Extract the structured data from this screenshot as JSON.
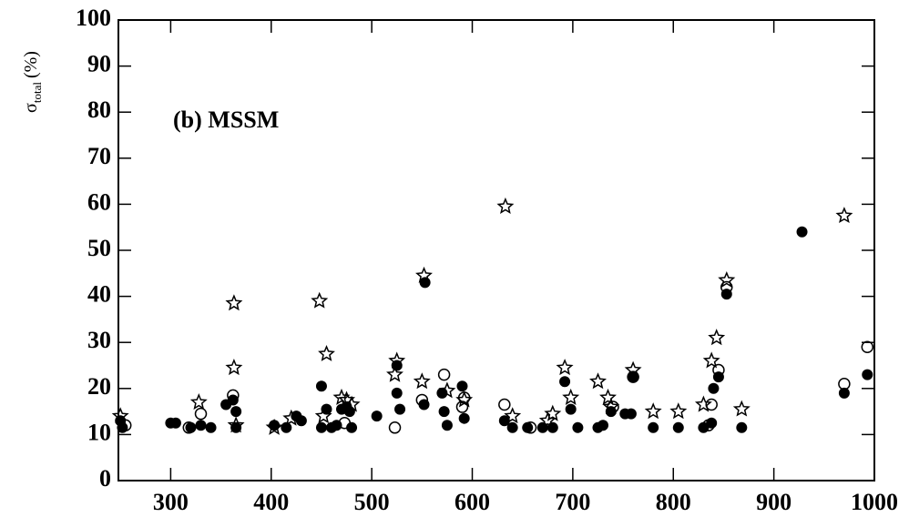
{
  "chart_data": {
    "type": "scatter",
    "annotation": "(b) MSSM",
    "ylabel": "σ",
    "ylabel_sub": "total",
    "ylabel_unit": "(%)",
    "xlim": [
      248,
      1000
    ],
    "ylim": [
      0,
      100
    ],
    "xticks": [
      300,
      400,
      500,
      600,
      700,
      800,
      900,
      1000
    ],
    "yticks": [
      0,
      10,
      20,
      30,
      40,
      50,
      60,
      70,
      80,
      90,
      100
    ],
    "series": [
      {
        "marker": "filled",
        "color": "#000000",
        "x": [
          250,
          252,
          300,
          305,
          320,
          330,
          340,
          355,
          362,
          365,
          365,
          403,
          415,
          425,
          430,
          450,
          450,
          455,
          460,
          465,
          470,
          475,
          478,
          480,
          505,
          525,
          525,
          528,
          552,
          553,
          570,
          572,
          575,
          590,
          592,
          632,
          640,
          655,
          670,
          680,
          692,
          698,
          705,
          725,
          730,
          738,
          752,
          758,
          760,
          780,
          805,
          830,
          838,
          840,
          845,
          853,
          868,
          928,
          970,
          993
        ],
        "values": [
          13,
          11.5,
          12.5,
          12.5,
          11.5,
          12,
          11.5,
          16.5,
          17.5,
          15,
          11.5,
          12,
          11.5,
          14,
          13,
          20.5,
          11.5,
          15.5,
          11.5,
          12,
          15.5,
          16,
          15,
          11.5,
          14,
          25,
          19,
          15.5,
          16.5,
          43,
          19,
          15,
          12,
          20.5,
          13.5,
          13,
          11.5,
          11.5,
          11.5,
          11.5,
          21.5,
          15.5,
          11.5,
          11.5,
          12,
          15,
          14.5,
          14.5,
          22.5,
          11.5,
          11.5,
          11.5,
          12.5,
          20,
          22.5,
          40.5,
          11.5,
          54,
          19,
          23
        ]
      },
      {
        "marker": "open",
        "color": "#000000",
        "x": [
          255,
          318,
          330,
          362,
          473,
          523,
          550,
          572,
          590,
          592,
          632,
          658,
          740,
          760,
          835,
          838,
          845,
          853,
          970,
          993
        ],
        "values": [
          12,
          11.5,
          14.5,
          18.5,
          12.5,
          11.5,
          17.5,
          23,
          16,
          18,
          16.5,
          11.5,
          16,
          22.5,
          12,
          16.5,
          24,
          42,
          21,
          29
        ]
      },
      {
        "marker": "star",
        "color": "#000000",
        "x": [
          250,
          328,
          363,
          363,
          365,
          403,
          420,
          448,
          452,
          455,
          470,
          475,
          480,
          523,
          525,
          550,
          552,
          575,
          592,
          633,
          640,
          675,
          680,
          692,
          698,
          725,
          735,
          738,
          760,
          780,
          805,
          830,
          838,
          843,
          853,
          868,
          970
        ],
        "values": [
          14,
          17,
          38.5,
          24.5,
          12,
          11.5,
          13.5,
          39,
          14,
          27.5,
          18,
          17.5,
          16.5,
          23,
          26,
          21.5,
          44.5,
          19.5,
          17.5,
          59.5,
          14,
          13,
          14.5,
          24.5,
          18,
          21.5,
          18,
          16,
          24,
          15,
          15,
          16.5,
          26,
          31,
          43.5,
          15.5,
          57.5
        ]
      }
    ]
  }
}
